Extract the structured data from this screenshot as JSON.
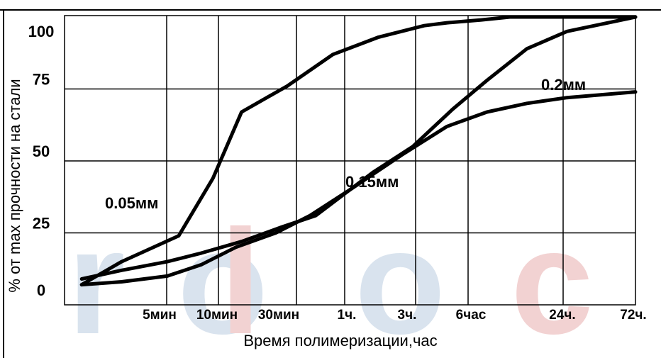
{
  "watermark": {
    "letters": [
      {
        "char": "r",
        "color": "#d9e3ee"
      },
      {
        "char": "o",
        "color": "#d9e3ee"
      },
      {
        "char": "l",
        "color": "#f2d2d2"
      },
      {
        "char": "o",
        "color": "#d9e3ee"
      },
      {
        "char": "c",
        "color": "#f2d2d2"
      }
    ]
  },
  "chart_data": {
    "type": "line",
    "title": "",
    "xlabel": "Время полимеризации,час",
    "ylabel": "% от max прочности на стали",
    "ylim": [
      0,
      100
    ],
    "yticks": [
      "0",
      "25",
      "50",
      "75",
      "100"
    ],
    "xtick_labels": [
      "5мин",
      "10мин",
      "30мин",
      "1ч.",
      "3ч.",
      "6час",
      "24ч.",
      "72ч."
    ],
    "grid": true,
    "series": [
      {
        "name": "0.05мм",
        "x": [
          0.3,
          1.0,
          2.0,
          2.6,
          3.1,
          3.9,
          4.7,
          5.5,
          6.3,
          6.7,
          7.3,
          7.8,
          8.3,
          9.2,
          10.0
        ],
        "y": [
          7,
          15,
          24,
          44,
          67,
          76,
          87,
          93,
          97,
          98,
          99,
          100,
          100,
          100,
          100
        ]
      },
      {
        "name": "0.15мм",
        "x": [
          0.3,
          1.0,
          1.8,
          2.4,
          3.1,
          3.8,
          4.4,
          4.8,
          5.4,
          6.1,
          6.8,
          7.4,
          8.1,
          8.8,
          10.0
        ],
        "y": [
          9,
          12,
          15,
          18,
          22,
          27,
          31,
          37,
          46,
          55,
          68,
          78,
          89,
          95,
          100
        ]
      },
      {
        "name": "0.2мм",
        "x": [
          0.3,
          1.0,
          1.8,
          2.4,
          3.0,
          3.7,
          4.3,
          5.0,
          5.9,
          6.7,
          7.4,
          8.1,
          8.8,
          10.0
        ],
        "y": [
          7,
          8,
          10,
          14,
          20,
          25,
          31,
          40,
          52,
          62,
          67,
          70,
          72,
          74
        ]
      }
    ],
    "series_labels": [
      {
        "text": "0.05мм"
      },
      {
        "text": "0.15мм"
      },
      {
        "text": "0.2мм"
      }
    ]
  }
}
